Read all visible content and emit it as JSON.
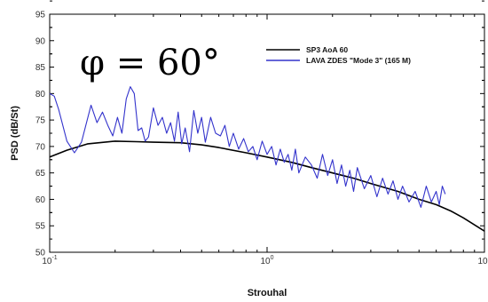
{
  "chart_data": {
    "type": "line",
    "xlabel": "Strouhal",
    "ylabel": "PSD (dB/St)",
    "xscale": "log",
    "xlim": [
      0.1,
      10
    ],
    "ylim": [
      50,
      95
    ],
    "yticks": [
      50,
      55,
      60,
      65,
      70,
      75,
      80,
      85,
      90,
      95
    ],
    "xticks": [
      {
        "base": "10",
        "exp": "-1",
        "value": 0.1
      },
      {
        "base": "10",
        "exp": "0",
        "value": 1
      },
      {
        "base": "10",
        "exp": "1",
        "value": 10
      }
    ],
    "annotation": "φ = 60°",
    "legend_position": "top-right",
    "series": [
      {
        "name": "SP3 AoA 60",
        "color": "#000000",
        "x": [
          0.1,
          0.12,
          0.15,
          0.2,
          0.25,
          0.3,
          0.4,
          0.5,
          0.6,
          0.8,
          1.0,
          1.3,
          1.6,
          2.0,
          2.5,
          3.0,
          4.0,
          5.0,
          6.0,
          7.0,
          8.0,
          10.0
        ],
        "values": [
          68,
          69.3,
          70.5,
          71,
          70.9,
          70.8,
          70.7,
          70.3,
          69.8,
          68.8,
          68,
          67,
          66,
          65,
          64,
          63,
          61.5,
          60,
          59,
          57.8,
          56.5,
          54
        ]
      },
      {
        "name": "LAVA ZDES \"Mode 3\" (165 M)",
        "color": "#3333cc",
        "x": [
          0.1,
          0.105,
          0.11,
          0.12,
          0.13,
          0.14,
          0.155,
          0.165,
          0.175,
          0.185,
          0.195,
          0.205,
          0.215,
          0.225,
          0.235,
          0.245,
          0.255,
          0.265,
          0.275,
          0.285,
          0.3,
          0.315,
          0.33,
          0.345,
          0.36,
          0.375,
          0.39,
          0.405,
          0.42,
          0.44,
          0.46,
          0.48,
          0.5,
          0.52,
          0.55,
          0.58,
          0.61,
          0.64,
          0.67,
          0.7,
          0.74,
          0.78,
          0.82,
          0.86,
          0.9,
          0.95,
          1.0,
          1.05,
          1.1,
          1.15,
          1.2,
          1.25,
          1.3,
          1.35,
          1.4,
          1.5,
          1.6,
          1.7,
          1.8,
          1.9,
          2.0,
          2.1,
          2.2,
          2.3,
          2.4,
          2.5,
          2.6,
          2.8,
          3.0,
          3.2,
          3.4,
          3.6,
          3.8,
          4.0,
          4.2,
          4.5,
          4.8,
          5.1,
          5.4,
          5.7,
          6.0,
          6.2,
          6.4,
          6.6
        ],
        "values": [
          80,
          79.5,
          77,
          71,
          68.8,
          70.8,
          77.8,
          74.5,
          76.5,
          74,
          72,
          75.5,
          72.5,
          79,
          81.3,
          80,
          73,
          73.5,
          71,
          71.8,
          77.3,
          74,
          75.5,
          72.5,
          74.5,
          71,
          76.5,
          70.5,
          73.5,
          69,
          76.8,
          72.5,
          75.5,
          70.8,
          75.5,
          72.5,
          72,
          74,
          70,
          72.5,
          69.5,
          71.5,
          69,
          70,
          67.5,
          71,
          68.5,
          70,
          66.5,
          69.5,
          67,
          68.5,
          65.5,
          69.5,
          65,
          68,
          66.5,
          64,
          68.5,
          64.5,
          67.5,
          63,
          66.5,
          62.5,
          65.5,
          61.5,
          66,
          62,
          64.5,
          60.5,
          64,
          61,
          63.5,
          60,
          62.5,
          59.5,
          61.5,
          58.5,
          62.5,
          59.5,
          61.5,
          59,
          62.5,
          61
        ]
      }
    ]
  }
}
